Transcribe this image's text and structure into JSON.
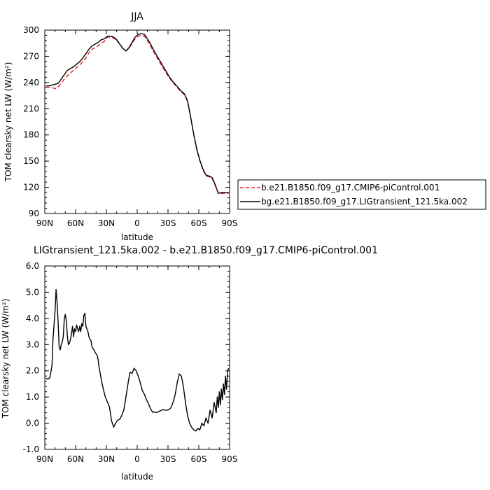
{
  "chart_data": [
    {
      "type": "line",
      "title": "JJA",
      "xlabel": "latitude",
      "ylabel": "TOM clearsky net LW (W/m²)",
      "xlim": [
        90,
        -90
      ],
      "ylim": [
        90,
        300
      ],
      "x_ticks": [
        90,
        60,
        30,
        0,
        -30,
        -60,
        -90
      ],
      "x_tick_labels": [
        "90N",
        "60N",
        "30N",
        "0",
        "30S",
        "60S",
        "90S"
      ],
      "y_ticks": [
        90,
        120,
        150,
        180,
        210,
        240,
        270,
        300
      ],
      "y_tick_labels": [
        "90",
        "120",
        "150",
        "180",
        "210",
        "240",
        "270",
        "300"
      ],
      "grid": false,
      "legend_position": "right",
      "series": [
        {
          "name": "b.e21.B1850.f09_g17.CMIP6-piControl.001",
          "color": "#e8202a",
          "dash": "dashed",
          "x": [
            89,
            86,
            83,
            80,
            77,
            74,
            71,
            68,
            65,
            62,
            59,
            56,
            53,
            50,
            47,
            44,
            41,
            38,
            35,
            32,
            29,
            26,
            23,
            20,
            17,
            14,
            11,
            8,
            5,
            2,
            -1,
            -4,
            -7,
            -10,
            -13,
            -16,
            -19,
            -22,
            -25,
            -28,
            -31,
            -34,
            -37,
            -40,
            -43,
            -46,
            -49,
            -52,
            -55,
            -58,
            -61,
            -64,
            -67,
            -70,
            -73,
            -76,
            -79,
            -82,
            -85,
            -88,
            -89
          ],
          "y": [
            234,
            234,
            234,
            233,
            235,
            239,
            244,
            248,
            251,
            254,
            257,
            260,
            264,
            268,
            274,
            278,
            280,
            282,
            285,
            287,
            292,
            292,
            291,
            288,
            284,
            279,
            276,
            279,
            285,
            290,
            293,
            294,
            293,
            288,
            282,
            275,
            269,
            263,
            257,
            251,
            246,
            241,
            237,
            233,
            229,
            226,
            218,
            200,
            180,
            163,
            150,
            140,
            133,
            132,
            130,
            122,
            113,
            113,
            113,
            113,
            113
          ]
        },
        {
          "name": "bg.e21.B1850.f09_g17.LIGtransient_121.5ka.002",
          "color": "#000000",
          "dash": "solid",
          "x": [
            89,
            86,
            83,
            80,
            77,
            74,
            71,
            68,
            65,
            62,
            59,
            56,
            53,
            50,
            47,
            44,
            41,
            38,
            35,
            32,
            29,
            26,
            23,
            20,
            17,
            14,
            11,
            8,
            5,
            2,
            -1,
            -4,
            -7,
            -10,
            -13,
            -16,
            -19,
            -22,
            -25,
            -28,
            -31,
            -34,
            -37,
            -40,
            -43,
            -46,
            -49,
            -52,
            -55,
            -58,
            -61,
            -64,
            -67,
            -70,
            -73,
            -76,
            -79,
            -82,
            -85,
            -88,
            -89
          ],
          "y": [
            236,
            236,
            237,
            238,
            239,
            244,
            249,
            254,
            256,
            258,
            261,
            264,
            268,
            273,
            278,
            282,
            284,
            286,
            289,
            290,
            293,
            293,
            292,
            289,
            284,
            279,
            276,
            280,
            286,
            292,
            295,
            296,
            295,
            290,
            284,
            277,
            271,
            265,
            259,
            253,
            247,
            242,
            238,
            234,
            230,
            227,
            219,
            201,
            181,
            164,
            151,
            141,
            134,
            133,
            131,
            123,
            113,
            114,
            114,
            114,
            114
          ]
        }
      ]
    },
    {
      "type": "line",
      "title": "LIGtransient_121.5ka.002 - b.e21.B1850.f09_g17.CMIP6-piControl.001",
      "xlabel": "latitude",
      "ylabel": "TOM clearsky net LW (W/m²)",
      "xlim": [
        90,
        -90
      ],
      "ylim": [
        -1.0,
        6.0
      ],
      "x_ticks": [
        90,
        60,
        30,
        0,
        -30,
        -60,
        -90
      ],
      "x_tick_labels": [
        "90N",
        "60N",
        "30N",
        "0",
        "30S",
        "60S",
        "90S"
      ],
      "y_ticks": [
        -1,
        0,
        1,
        2,
        3,
        4,
        5,
        6
      ],
      "y_tick_labels": [
        "-1.0",
        "0.0",
        "1.0",
        "2.0",
        "3.0",
        "4.0",
        "5.0",
        "6.0"
      ],
      "grid": false,
      "series": [
        {
          "color": "#000000",
          "dash": "solid",
          "x": [
            89,
            87,
            85,
            83,
            82,
            80,
            79,
            78,
            77,
            76,
            75,
            74,
            73,
            72,
            71,
            70,
            69,
            68,
            67,
            66,
            65,
            64,
            63,
            62,
            61,
            60,
            59,
            58,
            57,
            56,
            55,
            54,
            53,
            52,
            51,
            50,
            49,
            48,
            47,
            46,
            45,
            44,
            43,
            42,
            41,
            40,
            39,
            38,
            37,
            36,
            35,
            33,
            31,
            29,
            27,
            25,
            23,
            21,
            19,
            17,
            15,
            13,
            11,
            9,
            7,
            5,
            3,
            1,
            -1,
            -3,
            -5,
            -7,
            -9,
            -11,
            -13,
            -15,
            -17,
            -19,
            -21,
            -23,
            -25,
            -27,
            -29,
            -31,
            -33,
            -35,
            -37,
            -39,
            -41,
            -43,
            -45,
            -47,
            -49,
            -51,
            -53,
            -55,
            -57,
            -59,
            -61,
            -63,
            -65,
            -67,
            -69,
            -71,
            -73,
            -75,
            -77,
            -78,
            -79,
            -80,
            -81,
            -82,
            -83,
            -84,
            -85,
            -86,
            -87,
            -88,
            -89
          ],
          "y": [
            1.72,
            1.68,
            1.74,
            2.2,
            3.2,
            4.3,
            5.1,
            4.6,
            3.8,
            2.9,
            2.8,
            3.0,
            3.1,
            3.3,
            4.0,
            4.15,
            3.9,
            3.3,
            3.0,
            3.05,
            3.2,
            3.4,
            3.7,
            3.3,
            3.6,
            3.5,
            3.75,
            3.6,
            3.5,
            3.7,
            3.5,
            3.8,
            3.7,
            4.1,
            4.2,
            3.7,
            3.6,
            3.5,
            3.3,
            3.2,
            3.15,
            2.9,
            2.85,
            2.8,
            2.7,
            2.65,
            2.6,
            2.4,
            2.1,
            1.9,
            1.65,
            1.3,
            1.0,
            0.8,
            0.62,
            0.1,
            -0.15,
            0.0,
            0.12,
            0.15,
            0.3,
            0.5,
            1.0,
            1.5,
            1.95,
            1.9,
            2.1,
            2.0,
            1.8,
            1.55,
            1.25,
            1.1,
            0.9,
            0.75,
            0.55,
            0.42,
            0.43,
            0.4,
            0.45,
            0.48,
            0.52,
            0.5,
            0.5,
            0.52,
            0.6,
            0.8,
            1.1,
            1.55,
            1.88,
            1.8,
            1.4,
            0.8,
            0.3,
            0.0,
            -0.15,
            -0.25,
            -0.3,
            -0.2,
            -0.25,
            0.0,
            -0.1,
            0.2,
            0.0,
            0.5,
            0.2,
            0.8,
            0.4,
            1.0,
            0.6,
            1.2,
            0.7,
            1.3,
            0.9,
            1.5,
            1.1,
            1.8,
            1.3,
            2.0,
            2.1
          ]
        }
      ]
    }
  ]
}
